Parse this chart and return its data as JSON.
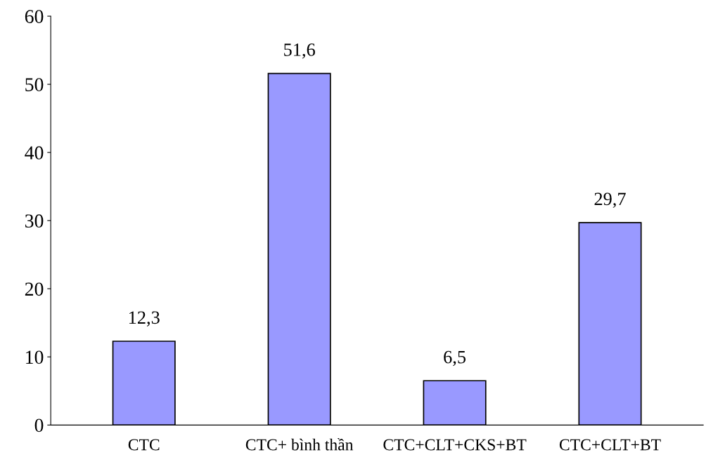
{
  "chart_data": {
    "type": "bar",
    "categories": [
      "CTC",
      "CTC+ bình thần",
      "CTC+CLT+CKS+BT",
      "CTC+CLT+BT"
    ],
    "values": [
      12.3,
      51.6,
      6.5,
      29.7
    ],
    "value_labels": [
      "12,3",
      "51,6",
      "6,5",
      "29,7"
    ],
    "color": "#9999ff",
    "ylim": [
      0,
      60
    ],
    "yticks": [
      0,
      10,
      20,
      30,
      40,
      50,
      60
    ],
    "grid": false,
    "legend": false
  }
}
